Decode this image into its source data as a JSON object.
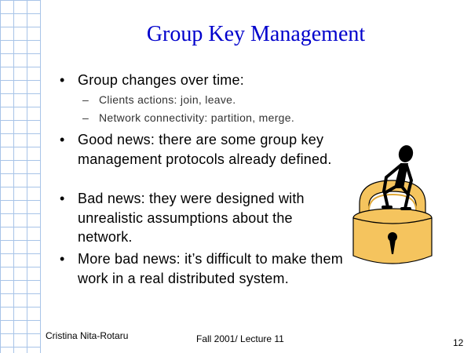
{
  "slide": {
    "title": "Group Key Management",
    "bullets": [
      {
        "marker": "•",
        "text": "Group changes over time:",
        "sub": [
          {
            "marker": "–",
            "text": "Clients actions: join, leave."
          },
          {
            "marker": "–",
            "text": "Network connectivity: partition, merge."
          }
        ]
      },
      {
        "marker": "•",
        "text": "Good news: there are some group key management protocols already defined."
      },
      {
        "marker": "•",
        "text": "Bad news: they were designed with unrealistic assumptions about the network."
      },
      {
        "marker": "•",
        "text": "More bad news: it’s difficult to make them work in a real distributed system."
      }
    ]
  },
  "footer": {
    "author": "Cristina Nita-Rotaru",
    "lecture": "Fall 2001/ Lecture 11",
    "page": "12"
  },
  "colors": {
    "title": "#0000cc",
    "grid": "#a8c4e8",
    "lock_body": "#f5c45e"
  },
  "icons": [
    "person-on-padlock-icon"
  ]
}
